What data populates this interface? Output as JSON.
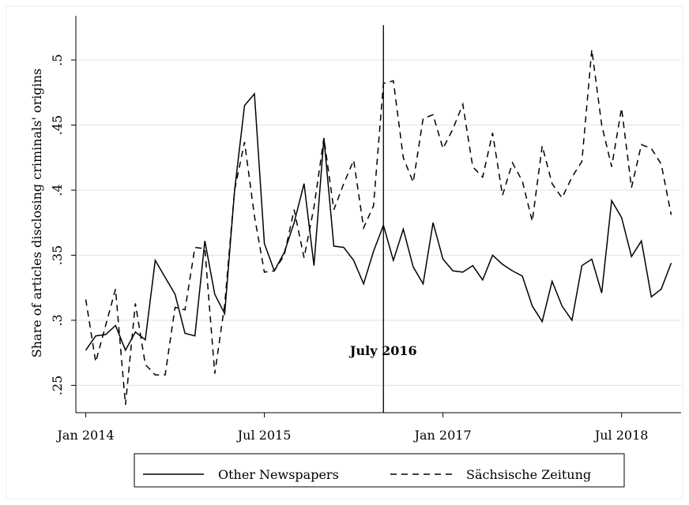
{
  "chart_data": {
    "type": "line",
    "y_label": "Share of  articles disclosing criminals' origins",
    "annotation": "July 2016",
    "vline": "2016-07",
    "x": [
      "2014-01",
      "2014-02",
      "2014-03",
      "2014-04",
      "2014-05",
      "2014-06",
      "2014-07",
      "2014-08",
      "2014-09",
      "2014-10",
      "2014-11",
      "2014-12",
      "2015-01",
      "2015-02",
      "2015-03",
      "2015-04",
      "2015-05",
      "2015-06",
      "2015-07",
      "2015-08",
      "2015-09",
      "2015-10",
      "2015-11",
      "2015-12",
      "2016-01",
      "2016-02",
      "2016-03",
      "2016-04",
      "2016-05",
      "2016-06",
      "2016-07",
      "2016-08",
      "2016-09",
      "2016-10",
      "2016-11",
      "2016-12",
      "2017-01",
      "2017-02",
      "2017-03",
      "2017-04",
      "2017-05",
      "2017-06",
      "2017-07",
      "2017-08",
      "2017-09",
      "2017-10",
      "2017-11",
      "2017-12",
      "2018-01",
      "2018-02",
      "2018-03",
      "2018-04",
      "2018-05",
      "2018-06",
      "2018-07",
      "2018-08",
      "2018-09",
      "2018-10",
      "2018-11",
      "2018-12"
    ],
    "series": [
      {
        "name": "Other Newspapers",
        "color": "#000000",
        "dash": "none",
        "values": [
          0.277,
          0.288,
          0.289,
          0.296,
          0.277,
          0.291,
          0.285,
          0.346,
          0.333,
          0.32,
          0.29,
          0.288,
          0.361,
          0.32,
          0.305,
          0.4,
          0.465,
          0.474,
          0.359,
          0.338,
          0.352,
          0.375,
          0.405,
          0.342,
          0.44,
          0.357,
          0.356,
          0.346,
          0.328,
          0.353,
          0.373,
          0.346,
          0.37,
          0.341,
          0.328,
          0.375,
          0.347,
          0.338,
          0.337,
          0.342,
          0.331,
          0.35,
          0.343,
          0.338,
          0.334,
          0.311,
          0.299,
          0.33,
          0.311,
          0.3,
          0.342,
          0.347,
          0.321,
          0.392,
          0.379,
          0.349,
          0.361,
          0.318,
          0.324,
          0.344
        ]
      },
      {
        "name": "Sächsische Zeitung",
        "color": "#000000",
        "dash": "8 6",
        "values": [
          0.316,
          0.268,
          0.296,
          0.324,
          0.235,
          0.313,
          0.266,
          0.258,
          0.258,
          0.31,
          0.308,
          0.356,
          0.355,
          0.259,
          0.312,
          0.4,
          0.437,
          0.38,
          0.337,
          0.338,
          0.35,
          0.385,
          0.348,
          0.387,
          0.44,
          0.385,
          0.405,
          0.423,
          0.371,
          0.388,
          0.482,
          0.484,
          0.425,
          0.406,
          0.455,
          0.458,
          0.432,
          0.447,
          0.466,
          0.418,
          0.41,
          0.444,
          0.396,
          0.421,
          0.407,
          0.376,
          0.434,
          0.405,
          0.394,
          0.41,
          0.422,
          0.508,
          0.45,
          0.418,
          0.463,
          0.402,
          0.435,
          0.432,
          0.42,
          0.381
        ]
      }
    ],
    "xlim": [
      "2013-12",
      "2019-01"
    ],
    "xticks": [
      {
        "value": "2014-01",
        "label": "Jan 2014"
      },
      {
        "value": "2015-07",
        "label": "Jul 2015"
      },
      {
        "value": "2017-01",
        "label": "Jan 2017"
      },
      {
        "value": "2018-07",
        "label": "Jul 2018"
      }
    ],
    "ylim": [
      0.229,
      0.534
    ],
    "yticks": [
      {
        "value": 0.25,
        "label": ".25"
      },
      {
        "value": 0.3,
        "label": ".3"
      },
      {
        "value": 0.35,
        "label": ".35"
      },
      {
        "value": 0.4,
        "label": ".4"
      },
      {
        "value": 0.45,
        "label": ".45"
      },
      {
        "value": 0.5,
        "label": ".5"
      }
    ],
    "grid": true
  }
}
